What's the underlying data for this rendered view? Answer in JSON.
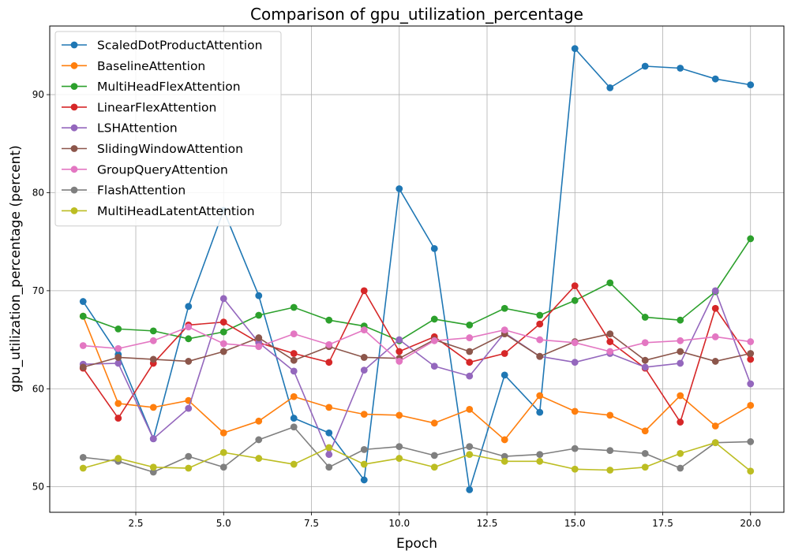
{
  "chart_data": {
    "type": "line",
    "title": "Comparison of gpu_utilization_percentage",
    "xlabel": "Epoch",
    "ylabel": "gpu_utilization_percentage (percent)",
    "xlim": [
      0.05,
      20.95
    ],
    "ylim": [
      47.4,
      97.0
    ],
    "xticks": [
      2.5,
      5.0,
      7.5,
      10.0,
      12.5,
      15.0,
      17.5,
      20.0
    ],
    "xtick_labels": [
      "2.5",
      "5.0",
      "7.5",
      "10.0",
      "12.5",
      "15.0",
      "17.5",
      "20.0"
    ],
    "yticks": [
      50,
      60,
      70,
      80,
      90
    ],
    "ytick_labels": [
      "50",
      "60",
      "70",
      "80",
      "90"
    ],
    "grid": true,
    "legend_position": "top-left",
    "x": [
      1,
      2,
      3,
      4,
      5,
      6,
      7,
      8,
      9,
      10,
      11,
      12,
      13,
      14,
      15,
      16,
      17,
      18,
      19,
      20
    ],
    "series": [
      {
        "name": "ScaledDotProductAttention",
        "color": "#1f77b4",
        "values": [
          68.9,
          63.5,
          54.9,
          68.4,
          78.2,
          69.5,
          57.0,
          55.5,
          50.7,
          80.4,
          74.3,
          49.7,
          61.4,
          57.6,
          94.7,
          90.7,
          92.9,
          92.7,
          91.6,
          91.0
        ]
      },
      {
        "name": "BaselineAttention",
        "color": "#ff7f0e",
        "values": [
          67.4,
          58.5,
          58.1,
          58.8,
          55.5,
          56.7,
          59.2,
          58.1,
          57.4,
          57.3,
          56.5,
          57.9,
          54.8,
          59.3,
          57.7,
          57.3,
          55.7,
          59.3,
          56.2,
          58.3
        ]
      },
      {
        "name": "MultiHeadFlexAttention",
        "color": "#2ca02c",
        "values": [
          67.4,
          66.1,
          65.9,
          65.1,
          65.8,
          67.5,
          68.3,
          67.0,
          66.4,
          64.9,
          67.1,
          66.5,
          68.2,
          67.5,
          69.0,
          70.8,
          67.3,
          67.0,
          69.9,
          75.3
        ]
      },
      {
        "name": "LinearFlexAttention",
        "color": "#d62728",
        "values": [
          62.1,
          57.0,
          62.6,
          66.5,
          66.8,
          64.7,
          63.6,
          62.7,
          70.0,
          63.8,
          65.3,
          62.7,
          63.6,
          66.6,
          70.5,
          64.8,
          62.1,
          56.6,
          68.2,
          63.0
        ]
      },
      {
        "name": "LSHAttention",
        "color": "#9467bd",
        "values": [
          62.5,
          62.6,
          54.9,
          58.0,
          69.2,
          64.7,
          61.8,
          53.3,
          61.9,
          65.0,
          62.3,
          61.3,
          65.7,
          63.3,
          62.7,
          63.6,
          62.2,
          62.6,
          70.0,
          60.5
        ]
      },
      {
        "name": "SlidingWindowAttention",
        "color": "#8c564b",
        "values": [
          62.2,
          63.2,
          63.0,
          62.8,
          63.8,
          65.2,
          62.9,
          64.3,
          63.2,
          63.1,
          65.0,
          63.8,
          65.6,
          63.3,
          64.8,
          65.6,
          62.9,
          63.8,
          62.8,
          63.6
        ]
      },
      {
        "name": "GroupQueryAttention",
        "color": "#e377c2",
        "values": [
          64.4,
          64.1,
          64.9,
          66.3,
          64.6,
          64.3,
          65.6,
          64.5,
          66.0,
          62.8,
          64.9,
          65.2,
          66.0,
          65.0,
          64.7,
          63.8,
          64.7,
          64.9,
          65.3,
          64.8
        ]
      },
      {
        "name": "FlashAttention",
        "color": "#7f7f7f",
        "values": [
          53.0,
          52.6,
          51.5,
          53.1,
          52.0,
          54.8,
          56.1,
          52.0,
          53.8,
          54.1,
          53.2,
          54.1,
          53.1,
          53.3,
          53.9,
          53.7,
          53.4,
          51.9,
          54.5,
          54.6
        ]
      },
      {
        "name": "MultiHeadLatentAttention",
        "color": "#bcbd22",
        "values": [
          51.9,
          52.9,
          52.0,
          51.9,
          53.5,
          52.9,
          52.3,
          54.0,
          52.3,
          52.9,
          52.0,
          53.3,
          52.6,
          52.6,
          51.8,
          51.7,
          52.0,
          53.4,
          54.5,
          51.6
        ]
      }
    ]
  }
}
